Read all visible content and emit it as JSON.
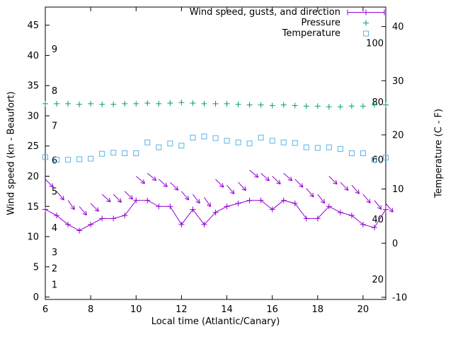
{
  "legend": {
    "wind_label": "Wind speed, gusts, and direction",
    "pressure_label": "Pressure",
    "temperature_label": "Temperature"
  },
  "axes": {
    "x_label": "Local time (Atlantic/Canary)",
    "y_left_label": "Wind speed (kn - Beaufort)",
    "y_right_label": "Temperature (C - F)",
    "x_ticks": [
      6,
      8,
      10,
      12,
      14,
      16,
      18,
      20
    ],
    "y_left_ticks": [
      0,
      5,
      10,
      15,
      20,
      25,
      30,
      35,
      40,
      45
    ],
    "y_right_ticks": [
      -10,
      0,
      10,
      20,
      30,
      40
    ],
    "beaufort_labels": [
      {
        "label": "1",
        "kn": 2.0
      },
      {
        "label": "2",
        "kn": 4.7
      },
      {
        "label": "3",
        "kn": 7.4
      },
      {
        "label": "4",
        "kn": 11.4
      },
      {
        "label": "5",
        "kn": 17.4
      },
      {
        "label": "6",
        "kn": 22.6
      },
      {
        "label": "7",
        "kn": 28.3
      },
      {
        "label": "8",
        "kn": 34.1
      },
      {
        "label": "9",
        "kn": 41.0
      }
    ],
    "fahrenheit_labels": [
      {
        "label": "20",
        "at_kn": 2.9
      },
      {
        "label": "40",
        "at_kn": 12.8
      },
      {
        "label": "60",
        "at_kn": 22.7
      },
      {
        "label": "80",
        "at_kn": 32.2
      },
      {
        "label": "100",
        "at_kn": 42.0
      }
    ]
  },
  "colors": {
    "wind": "#9400d3",
    "pressure": "#009e73",
    "temperature": "#56b4e9",
    "axis": "#000000"
  },
  "chart_data": {
    "type": "line",
    "title": "",
    "xlabel": "Local time (Atlantic/Canary)",
    "ylabel_left": "Wind speed (kn - Beaufort)",
    "ylabel_right": "Temperature (C - F)",
    "xlim": [
      6,
      21
    ],
    "ylim_left": [
      -0.4,
      48.0
    ],
    "ylim_right": [
      -10.4,
      43.6
    ],
    "legend_position": "top right inside",
    "grid": false,
    "x": [
      6,
      6.5,
      7,
      7.5,
      8,
      8.5,
      9,
      9.5,
      10,
      10.5,
      11,
      11.5,
      12,
      12.5,
      13,
      13.5,
      14,
      14.5,
      15,
      15.5,
      16,
      16.5,
      17,
      17.5,
      18,
      18.5,
      19,
      19.5,
      20,
      20.5,
      21
    ],
    "series": [
      {
        "id": "wind",
        "name": "Wind speed, gusts, and direction",
        "style": "line+plus-markers",
        "axis": "left",
        "unit": "kn",
        "values": [
          14.5,
          13.5,
          12,
          11,
          12,
          13,
          13,
          13.5,
          16,
          16,
          15,
          15,
          12,
          14.5,
          12,
          14,
          15,
          15.5,
          16,
          16,
          14.5,
          16,
          15.5,
          13,
          13,
          15,
          14,
          13.5,
          12,
          11.5,
          14.5
        ]
      },
      {
        "id": "gusts",
        "name": "Wind gusts and direction arrows",
        "style": "vectors",
        "axis": "left",
        "unit": "kn",
        "values": [
          19.5,
          17.5,
          16,
          15,
          15.5,
          17,
          17,
          17.5,
          20,
          20.5,
          19.5,
          19,
          17.5,
          17,
          16.5,
          19.5,
          18.5,
          19,
          21,
          20.5,
          20,
          20.5,
          19.5,
          18,
          17,
          20,
          19,
          18.5,
          17,
          16,
          15.5
        ],
        "angles_deg": [
          45,
          50,
          55,
          50,
          45,
          42,
          45,
          45,
          40,
          40,
          42,
          45,
          50,
          52,
          55,
          45,
          50,
          47,
          40,
          42,
          44,
          42,
          45,
          50,
          52,
          45,
          46,
          48,
          50,
          52,
          50
        ]
      },
      {
        "id": "pressure",
        "name": "Pressure",
        "style": "plus-markers",
        "axis": "left-plotted-position",
        "values": [
          32,
          32,
          32,
          31.9,
          32,
          31.9,
          31.9,
          32,
          32,
          32.1,
          32,
          32.1,
          32.2,
          32.1,
          32,
          32,
          32,
          31.9,
          31.8,
          31.8,
          31.7,
          31.8,
          31.7,
          31.6,
          31.6,
          31.5,
          31.5,
          31.6,
          31.6,
          31.8,
          31.8
        ]
      },
      {
        "id": "temperature",
        "name": "Temperature",
        "style": "open-square-markers",
        "axis": "right",
        "unit": "C",
        "values_c": [
          15.9,
          15.4,
          15.4,
          15.5,
          15.6,
          16.5,
          16.7,
          16.6,
          16.6,
          18.6,
          17.7,
          18.4,
          18.0,
          19.5,
          19.7,
          19.4,
          18.9,
          18.6,
          18.4,
          19.5,
          18.9,
          18.6,
          18.5,
          17.7,
          17.6,
          17.7,
          17.4,
          16.6,
          16.6,
          15.4,
          15.8
        ]
      }
    ]
  }
}
